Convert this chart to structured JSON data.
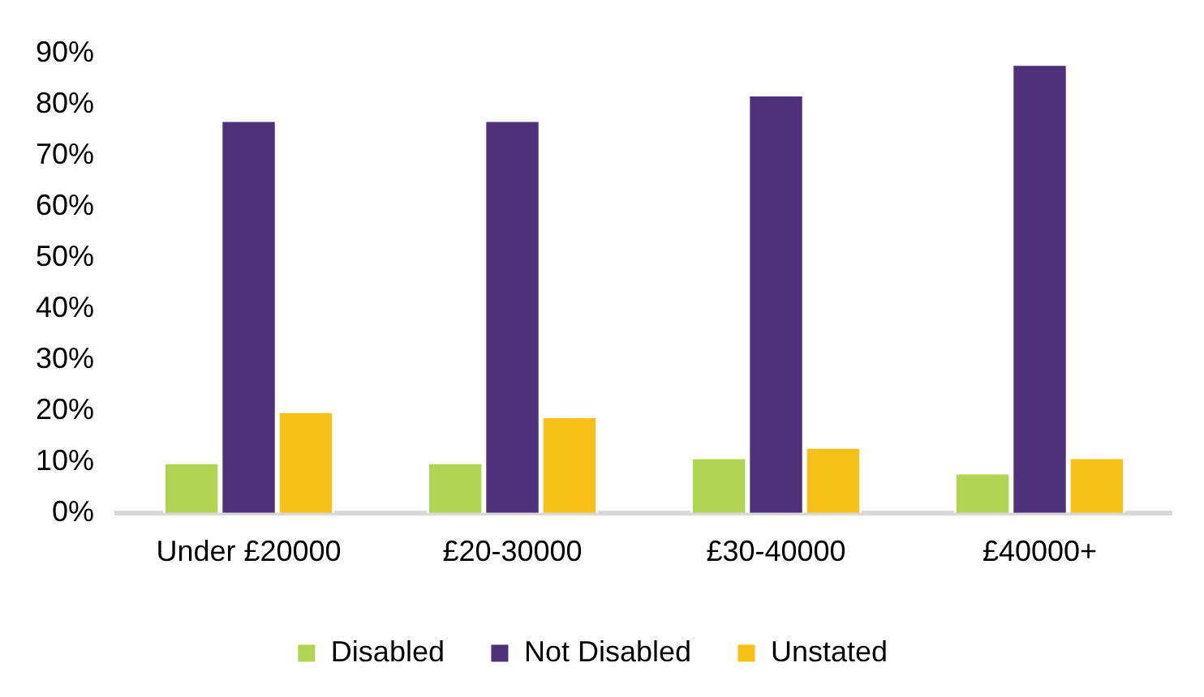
{
  "chart_data": {
    "type": "bar",
    "categories": [
      "Under £20000",
      "£20-30000",
      "£30-40000",
      "£40000+"
    ],
    "series": [
      {
        "name": "Disabled",
        "color": "#b2d453",
        "values": [
          10,
          10,
          11,
          8
        ]
      },
      {
        "name": "Not Disabled",
        "color": "#4e317b",
        "values": [
          77,
          77,
          82,
          88
        ]
      },
      {
        "name": "Unstated",
        "color": "#f8c118",
        "values": [
          20,
          19,
          13,
          11
        ]
      }
    ],
    "ylim": [
      0,
      90
    ],
    "yticks": [
      {
        "value": 0,
        "label": "0%"
      },
      {
        "value": 10,
        "label": "10%"
      },
      {
        "value": 20,
        "label": "20%"
      },
      {
        "value": 30,
        "label": "30%"
      },
      {
        "value": 40,
        "label": "40%"
      },
      {
        "value": 50,
        "label": "50%"
      },
      {
        "value": 60,
        "label": "60%"
      },
      {
        "value": 70,
        "label": "70%"
      },
      {
        "value": 80,
        "label": "80%"
      },
      {
        "value": 90,
        "label": "90%"
      }
    ],
    "grid": false,
    "legend": "bottom"
  }
}
